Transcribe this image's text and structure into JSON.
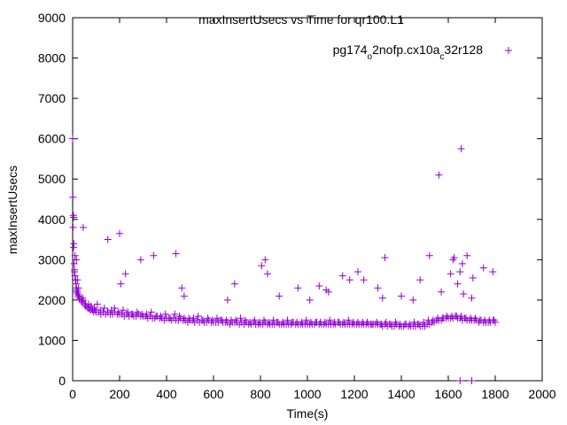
{
  "chart_data": {
    "type": "scatter",
    "title": "maxInsertUsecs vs Time for qr100.L1",
    "xlabel": "Time(s)",
    "ylabel": "maxInsertUsecs",
    "xlim": [
      0,
      2000
    ],
    "ylim": [
      0,
      9000
    ],
    "xticks": [
      "0",
      "200",
      "400",
      "600",
      "800",
      "1000",
      "1200",
      "1400",
      "1600",
      "1800",
      "2000"
    ],
    "yticks": [
      "0",
      "1000",
      "2000",
      "3000",
      "4000",
      "5000",
      "6000",
      "7000",
      "8000",
      "9000"
    ],
    "grid": false,
    "legend_position": "top-right",
    "colors": {
      "series": "#9400d3",
      "axis": "#000000"
    },
    "series": [
      {
        "name": "pg174_o2nofp.cx10a_c32r128",
        "marker": "plus",
        "x": [
          0,
          2,
          4,
          6,
          8,
          10,
          12,
          14,
          16,
          18,
          20,
          22,
          24,
          26,
          28,
          30,
          35,
          40,
          45,
          50,
          55,
          60,
          65,
          70,
          75,
          80,
          85,
          90,
          95,
          100,
          110,
          120,
          130,
          140,
          150,
          160,
          170,
          180,
          190,
          200,
          210,
          220,
          230,
          240,
          250,
          260,
          270,
          280,
          290,
          300,
          310,
          320,
          330,
          340,
          350,
          360,
          370,
          380,
          390,
          400,
          410,
          420,
          430,
          440,
          450,
          460,
          470,
          480,
          490,
          500,
          510,
          520,
          530,
          540,
          550,
          560,
          570,
          580,
          590,
          600,
          610,
          620,
          630,
          640,
          650,
          660,
          670,
          680,
          690,
          700,
          710,
          720,
          730,
          740,
          750,
          760,
          770,
          780,
          790,
          800,
          810,
          820,
          830,
          840,
          850,
          860,
          870,
          880,
          890,
          900,
          910,
          920,
          930,
          940,
          950,
          960,
          970,
          980,
          990,
          1000,
          1010,
          1020,
          1030,
          1040,
          1050,
          1060,
          1070,
          1080,
          1090,
          1100,
          1110,
          1120,
          1130,
          1140,
          1150,
          1160,
          1170,
          1180,
          1190,
          1200,
          1210,
          1220,
          1230,
          1240,
          1250,
          1260,
          1270,
          1280,
          1290,
          1300,
          1310,
          1320,
          1330,
          1340,
          1350,
          1360,
          1370,
          1380,
          1390,
          1400,
          1410,
          1420,
          1430,
          1440,
          1450,
          1460,
          1470,
          1480,
          1490,
          1500,
          1510,
          1520,
          1530,
          1540,
          1550,
          1560,
          1570,
          1580,
          1590,
          1600,
          1610,
          1620,
          1630,
          1640,
          1650,
          1660,
          1670,
          1680,
          1690,
          1700,
          1710,
          1720,
          1730,
          1740,
          1750,
          1760,
          1770,
          1780,
          1790,
          1800,
          1,
          3,
          5,
          8,
          12,
          15,
          25,
          42,
          55,
          68,
          78,
          92,
          105,
          118,
          135,
          148,
          165,
          178,
          195,
          215,
          235,
          255,
          275,
          295,
          315,
          335,
          355,
          375,
          395,
          415,
          435,
          455,
          475,
          495,
          515,
          535,
          555,
          575,
          595,
          615,
          635,
          655,
          675,
          695,
          715,
          735,
          755,
          775,
          795,
          815,
          835,
          855,
          875,
          895,
          915,
          935,
          955,
          975,
          995,
          1015,
          1035,
          1055,
          1075,
          1095,
          1115,
          1135,
          1155,
          1175,
          1195,
          1215,
          1235,
          1255,
          1275,
          1295,
          1315,
          1335,
          1355,
          1375,
          1395,
          1415,
          1435,
          1455,
          1475,
          1495,
          1515,
          1535,
          1555,
          1575,
          1595,
          1615,
          1635,
          1655,
          1675,
          1695,
          1715,
          1735,
          1755,
          1775,
          1795,
          4,
          10,
          16,
          20,
          45,
          150,
          200,
          205,
          225,
          290,
          345,
          440,
          465,
          475,
          660,
          690,
          805,
          820,
          830,
          880,
          960,
          1010,
          1050,
          1080,
          1090,
          1150,
          1180,
          1215,
          1240,
          1300,
          1320,
          1330,
          1400,
          1450,
          1480,
          1520,
          1560,
          1570,
          1610,
          1620,
          1625,
          1640,
          1650,
          1655,
          1660,
          1665,
          1680,
          1700,
          1705,
          1750,
          1790,
          1650,
          1700
        ],
        "y": [
          6000,
          3800,
          3300,
          2900,
          2750,
          2600,
          2500,
          2400,
          2300,
          2250,
          2200,
          2150,
          2100,
          2100,
          2050,
          2050,
          2000,
          1950,
          2000,
          1900,
          1850,
          1850,
          1800,
          1800,
          1750,
          1800,
          1750,
          1700,
          1750,
          1700,
          1700,
          1650,
          1700,
          1650,
          1700,
          1650,
          1650,
          1700,
          1650,
          1650,
          1650,
          1600,
          1650,
          1600,
          1650,
          1600,
          1600,
          1650,
          1600,
          1600,
          1600,
          1550,
          1600,
          1550,
          1550,
          1600,
          1550,
          1550,
          1500,
          1550,
          1550,
          1500,
          1550,
          1500,
          1500,
          1550,
          1500,
          1500,
          1450,
          1500,
          1500,
          1450,
          1500,
          1450,
          1500,
          1450,
          1450,
          1500,
          1450,
          1450,
          1450,
          1450,
          1500,
          1450,
          1450,
          1450,
          1400,
          1450,
          1450,
          1450,
          1400,
          1450,
          1400,
          1450,
          1400,
          1400,
          1450,
          1400,
          1400,
          1400,
          1400,
          1450,
          1400,
          1400,
          1400,
          1400,
          1450,
          1400,
          1400,
          1400,
          1400,
          1400,
          1400,
          1450,
          1400,
          1400,
          1400,
          1400,
          1400,
          1400,
          1400,
          1400,
          1400,
          1450,
          1400,
          1400,
          1400,
          1400,
          1400,
          1400,
          1400,
          1400,
          1450,
          1400,
          1400,
          1400,
          1400,
          1400,
          1400,
          1400,
          1400,
          1400,
          1400,
          1400,
          1400,
          1400,
          1400,
          1400,
          1400,
          1400,
          1400,
          1350,
          1400,
          1350,
          1400,
          1350,
          1350,
          1400,
          1350,
          1350,
          1350,
          1400,
          1350,
          1350,
          1350,
          1350,
          1400,
          1350,
          1350,
          1350,
          1400,
          1400,
          1450,
          1450,
          1500,
          1500,
          1500,
          1550,
          1550,
          1550,
          1550,
          1550,
          1600,
          1550,
          1550,
          1500,
          1550,
          1500,
          1500,
          1500,
          1500,
          1500,
          1450,
          1500,
          1450,
          1450,
          1450,
          1450,
          1500,
          1450,
          4550,
          4100,
          3400,
          2700,
          2500,
          2200,
          2300,
          2050,
          1900,
          1900,
          1850,
          1800,
          1900,
          1750,
          1800,
          1700,
          1750,
          1800,
          1700,
          1750,
          1700,
          1650,
          1700,
          1650,
          1650,
          1700,
          1600,
          1600,
          1650,
          1550,
          1650,
          1600,
          1550,
          1550,
          1550,
          1600,
          1500,
          1550,
          1500,
          1550,
          1500,
          1500,
          1500,
          1500,
          1550,
          1500,
          1450,
          1500,
          1450,
          1500,
          1450,
          1500,
          1450,
          1450,
          1500,
          1450,
          1450,
          1450,
          1500,
          1450,
          1450,
          1450,
          1450,
          1500,
          1450,
          1450,
          1450,
          1500,
          1450,
          1450,
          1450,
          1450,
          1400,
          1450,
          1400,
          1450,
          1400,
          1450,
          1400,
          1400,
          1400,
          1450,
          1400,
          1450,
          1500,
          1500,
          1550,
          1550,
          1600,
          1600,
          1600,
          1600,
          1550,
          1550,
          1550,
          1500,
          1500,
          1500,
          1500,
          4050,
          3100,
          3000,
          2500,
          3800,
          3500,
          3650,
          2400,
          2650,
          3000,
          3100,
          3150,
          2300,
          2100,
          2000,
          2400,
          2850,
          3000,
          2650,
          2100,
          2300,
          2000,
          2350,
          2250,
          2200,
          2600,
          2500,
          2700,
          2500,
          2300,
          2050,
          3050,
          2100,
          2000,
          2500,
          3100,
          5100,
          2200,
          2650,
          3000,
          3050,
          2400,
          2700,
          5750,
          2900,
          2150,
          3100,
          2050,
          2550,
          2800,
          2700,
          0,
          0
        ]
      }
    ]
  }
}
